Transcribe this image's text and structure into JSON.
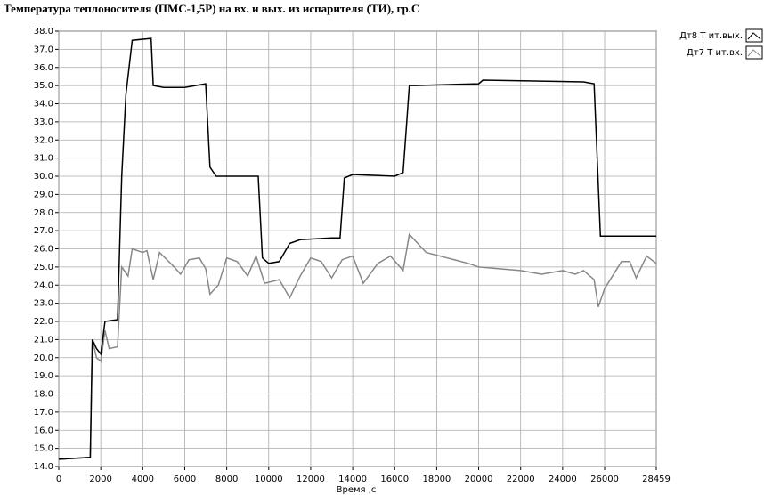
{
  "chart_data": {
    "type": "line",
    "title": "Температура теплоносителя (ПМС-1,5Р) на вх. и вых. из испарителя (ТИ), гр.С",
    "x_label": "Время ,с",
    "xlim": [
      0,
      28459
    ],
    "xticks": [
      0,
      2000,
      4000,
      6000,
      8000,
      10000,
      12000,
      14000,
      16000,
      18000,
      20000,
      22000,
      24000,
      26000,
      28459
    ],
    "ylim": [
      14,
      38
    ],
    "yticks": [
      {
        "value": 14,
        "label": "14.0"
      },
      {
        "value": 15,
        "label": "15.0"
      },
      {
        "value": 16,
        "label": "16.0"
      },
      {
        "value": 17,
        "label": "17.0"
      },
      {
        "value": 18,
        "label": "18.0"
      },
      {
        "value": 19,
        "label": "19.0"
      },
      {
        "value": 20,
        "label": "20.0"
      },
      {
        "value": 21,
        "label": "21.0"
      },
      {
        "value": 22,
        "label": "22.0"
      },
      {
        "value": 23,
        "label": "23.0"
      },
      {
        "value": 24,
        "label": "24.0"
      },
      {
        "value": 25,
        "label": "25.0"
      },
      {
        "value": 26,
        "label": "26.0"
      },
      {
        "value": 27,
        "label": "27.0"
      },
      {
        "value": 28,
        "label": "28.0"
      },
      {
        "value": 29,
        "label": "29.0"
      },
      {
        "value": 30,
        "label": "30.0"
      },
      {
        "value": 31,
        "label": "31.0"
      },
      {
        "value": 32,
        "label": "32.0"
      },
      {
        "value": 33,
        "label": "33.0"
      },
      {
        "value": 34,
        "label": "34.0"
      },
      {
        "value": 35,
        "label": "35.0"
      },
      {
        "value": 36,
        "label": "36.0"
      },
      {
        "value": 37,
        "label": "37.0"
      },
      {
        "value": 38,
        "label": "38.0"
      }
    ],
    "grid": true,
    "legend": "top-right",
    "series": [
      {
        "name": "Дт8 T ит.вых.",
        "color": "#000000",
        "x": [
          0,
          1500,
          1600,
          1800,
          2000,
          2200,
          2800,
          3000,
          3200,
          3500,
          4400,
          4500,
          5000,
          6000,
          7000,
          7200,
          7500,
          9500,
          9700,
          10000,
          10500,
          11000,
          11500,
          13000,
          13400,
          13600,
          14000,
          16000,
          16400,
          16700,
          17000,
          20000,
          20200,
          25000,
          25500,
          25800,
          28459
        ],
        "values": [
          14.4,
          14.5,
          21.0,
          20.5,
          20.2,
          22.0,
          22.1,
          30.0,
          34.5,
          37.5,
          37.6,
          35.0,
          34.9,
          34.9,
          35.1,
          30.5,
          30.0,
          30.0,
          25.5,
          25.2,
          25.3,
          26.3,
          26.5,
          26.6,
          26.6,
          29.9,
          30.1,
          30.0,
          30.2,
          35.0,
          35.0,
          35.1,
          35.3,
          35.2,
          35.1,
          26.7,
          26.7
        ]
      },
      {
        "name": "Дт7 T ит.вх.",
        "color": "#888888",
        "x": [
          0,
          1500,
          1600,
          1800,
          2000,
          2200,
          2400,
          2800,
          3000,
          3300,
          3500,
          4000,
          4200,
          4500,
          4800,
          5500,
          5800,
          6200,
          6700,
          7000,
          7200,
          7600,
          8000,
          8500,
          9000,
          9400,
          9800,
          10500,
          11000,
          11500,
          12000,
          12500,
          13000,
          13500,
          14000,
          14500,
          15200,
          15800,
          16400,
          16700,
          17500,
          18500,
          19500,
          20000,
          21000,
          22000,
          23000,
          24000,
          24600,
          25000,
          25500,
          25700,
          26000,
          26800,
          27200,
          27500,
          28000,
          28459
        ],
        "values": [
          14.4,
          14.5,
          21.0,
          20.0,
          19.8,
          21.5,
          20.5,
          20.6,
          25.0,
          24.5,
          26.0,
          25.8,
          25.9,
          24.3,
          25.8,
          25.0,
          24.6,
          25.4,
          25.5,
          24.9,
          23.5,
          24.0,
          25.5,
          25.3,
          24.5,
          25.6,
          24.1,
          24.3,
          23.3,
          24.5,
          25.5,
          25.3,
          24.4,
          25.4,
          25.6,
          24.1,
          25.2,
          25.6,
          24.8,
          26.8,
          25.8,
          25.5,
          25.2,
          25.0,
          24.9,
          24.8,
          24.6,
          24.8,
          24.6,
          24.8,
          24.3,
          22.8,
          23.8,
          25.3,
          25.3,
          24.4,
          25.6,
          25.2
        ]
      }
    ]
  }
}
